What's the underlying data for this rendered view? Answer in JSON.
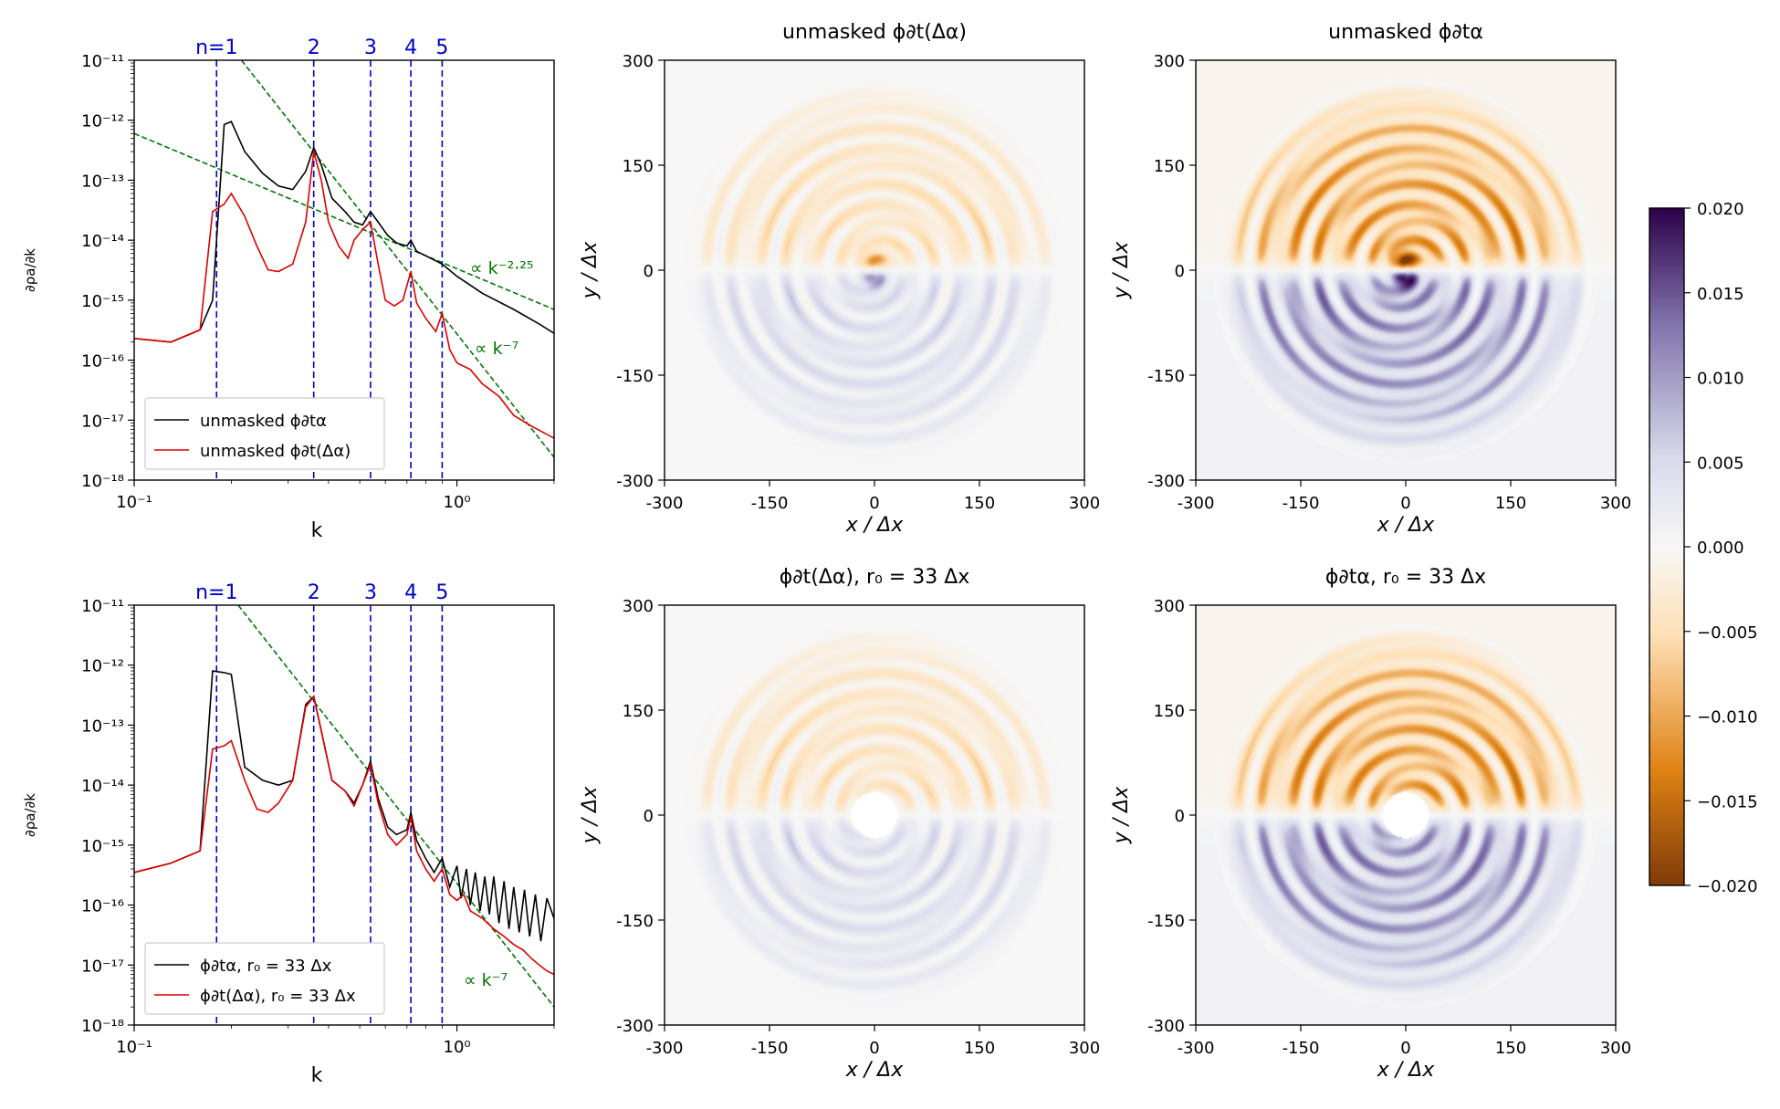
{
  "figure": {
    "colorbar": {
      "min": -0.02,
      "max": 0.02,
      "ticks": [
        "0.020",
        "0.015",
        "0.010",
        "0.005",
        "0.000",
        "−0.005",
        "−0.010",
        "−0.015",
        "−0.020"
      ],
      "tick_values": [
        0.02,
        0.015,
        0.01,
        0.005,
        0,
        -0.005,
        -0.01,
        -0.015,
        -0.02
      ],
      "colors": [
        "#7f3b08",
        "#e08214",
        "#fee0b6",
        "#f7f7f7",
        "#d8daeb",
        "#8073ac",
        "#2d004b"
      ]
    }
  },
  "chart_data": [
    {
      "type": "line",
      "id": "spectrum-top",
      "xscale": "log",
      "yscale": "log",
      "xlim": [
        0.1,
        2.0
      ],
      "ylim": [
        1e-18,
        1e-11
      ],
      "xlabel": "k",
      "ylabel": "∂ρa/∂k",
      "xtick_labels": [
        "10⁻¹",
        "10⁰"
      ],
      "ytick_labels": [
        "10⁻¹¹",
        "10⁻¹²",
        "10⁻¹³",
        "10⁻¹⁴",
        "10⁻¹⁵",
        "10⁻¹⁶",
        "10⁻¹⁷",
        "10⁻¹⁸"
      ],
      "vlines": {
        "x": [
          0.18,
          0.36,
          0.54,
          0.72,
          0.9
        ],
        "labels": [
          "n=1",
          "2",
          "3",
          "4",
          "5"
        ],
        "color": "#0000cc"
      },
      "fits": [
        {
          "label": "∝ k⁻²·²⁵",
          "points": [
            [
              0.1,
              6e-13
            ],
            [
              2.0,
              7e-16
            ]
          ],
          "color": "#007700"
        },
        {
          "label": "∝ k⁻⁷",
          "points": [
            [
              0.215,
              1e-11
            ],
            [
              2.0,
              2.4e-18
            ]
          ],
          "color": "#007700"
        }
      ],
      "series": [
        {
          "name": "unmasked ϕ∂tα",
          "color": "#000000",
          "x": [
            0.1,
            0.13,
            0.16,
            0.175,
            0.19,
            0.2,
            0.22,
            0.25,
            0.28,
            0.31,
            0.34,
            0.36,
            0.38,
            0.41,
            0.45,
            0.48,
            0.51,
            0.54,
            0.57,
            0.61,
            0.65,
            0.7,
            0.72,
            0.75,
            0.8,
            0.9,
            1.0,
            1.2,
            1.5,
            1.8,
            2.0
          ],
          "y": [
            2.3e-16,
            2e-16,
            3.2e-16,
            1e-15,
            8.5e-13,
            9.5e-13,
            3e-13,
            1.3e-13,
            8e-14,
            7e-14,
            1.4e-13,
            3.5e-13,
            1.8e-13,
            5e-14,
            3e-14,
            2e-14,
            1.8e-14,
            3e-14,
            2e-14,
            1.2e-14,
            9e-15,
            8e-15,
            1e-14,
            6.5e-15,
            5.5e-15,
            4e-15,
            2.5e-15,
            1.3e-15,
            7e-16,
            4e-16,
            2.8e-16
          ]
        },
        {
          "name": "unmasked ϕ∂t(Δα)",
          "color": "#dd0000",
          "x": [
            0.1,
            0.13,
            0.16,
            0.175,
            0.19,
            0.2,
            0.22,
            0.24,
            0.26,
            0.28,
            0.31,
            0.34,
            0.36,
            0.38,
            0.4,
            0.43,
            0.46,
            0.48,
            0.51,
            0.54,
            0.57,
            0.6,
            0.64,
            0.68,
            0.72,
            0.75,
            0.8,
            0.86,
            0.9,
            0.95,
            1.0,
            1.1,
            1.2,
            1.35,
            1.5,
            1.7,
            2.0
          ],
          "y": [
            2.3e-16,
            2e-16,
            3.2e-16,
            3e-14,
            4e-14,
            6e-14,
            2.5e-14,
            8e-15,
            3.2e-15,
            3e-15,
            4e-15,
            2e-14,
            3e-13,
            1e-13,
            2e-14,
            8e-15,
            5e-15,
            1e-14,
            1.5e-14,
            2e-14,
            4e-15,
            1e-15,
            8e-16,
            1e-15,
            3e-15,
            9e-16,
            5e-16,
            3e-16,
            6e-16,
            1.5e-16,
            9e-17,
            7e-17,
            4e-17,
            2.5e-17,
            1.2e-17,
            8e-18,
            5e-18
          ]
        }
      ],
      "legend": {
        "loc": "lower-left",
        "entries": [
          "unmasked ϕ∂tα",
          "unmasked ϕ∂t(Δα)"
        ]
      }
    },
    {
      "type": "line",
      "id": "spectrum-bottom",
      "xscale": "log",
      "yscale": "log",
      "xlim": [
        0.1,
        2.0
      ],
      "ylim": [
        1e-18,
        1e-11
      ],
      "xlabel": "k",
      "ylabel": "∂ρa/∂k",
      "xtick_labels": [
        "10⁻¹",
        "10⁰"
      ],
      "ytick_labels": [
        "10⁻¹¹",
        "10⁻¹²",
        "10⁻¹³",
        "10⁻¹⁴",
        "10⁻¹⁵",
        "10⁻¹⁶",
        "10⁻¹⁷",
        "10⁻¹⁸"
      ],
      "vlines": {
        "x": [
          0.18,
          0.36,
          0.54,
          0.72,
          0.9
        ],
        "labels": [
          "n=1",
          "2",
          "3",
          "4",
          "5"
        ],
        "color": "#0000cc"
      },
      "fits": [
        {
          "label": "∝ k⁻⁷",
          "points": [
            [
              0.21,
              1e-11
            ],
            [
              2.0,
              2e-18
            ]
          ],
          "color": "#007700"
        }
      ],
      "series": [
        {
          "name": "ϕ∂tα, r₀ = 33 Δx",
          "color": "#000000",
          "x": [
            0.1,
            0.13,
            0.16,
            0.175,
            0.19,
            0.2,
            0.22,
            0.25,
            0.28,
            0.31,
            0.34,
            0.36,
            0.38,
            0.41,
            0.45,
            0.48,
            0.51,
            0.54,
            0.57,
            0.61,
            0.65,
            0.7,
            0.72,
            0.75,
            0.8,
            0.85,
            0.9,
            0.95,
            1.0,
            1.03,
            1.07,
            1.1,
            1.14,
            1.18,
            1.22,
            1.26,
            1.3,
            1.35,
            1.4,
            1.45,
            1.5,
            1.56,
            1.62,
            1.68,
            1.75,
            1.82,
            1.9,
            2.0
          ],
          "y": [
            3.5e-16,
            5e-16,
            8e-16,
            8e-13,
            7.5e-13,
            7e-13,
            2e-14,
            1.2e-14,
            1e-14,
            1.2e-14,
            2.2e-13,
            3e-13,
            8e-14,
            1.2e-14,
            8e-15,
            5e-15,
            1e-14,
            2.5e-14,
            6e-15,
            2e-15,
            1.5e-15,
            1.8e-15,
            3.5e-15,
            1.2e-15,
            6e-16,
            3.5e-16,
            6e-16,
            2e-16,
            4.5e-16,
            1.3e-16,
            4e-16,
            1e-16,
            3.5e-16,
            8e-17,
            3e-16,
            7e-17,
            3e-16,
            5e-17,
            2.5e-16,
            4e-17,
            2e-16,
            3.5e-17,
            1.8e-16,
            3e-17,
            1.5e-16,
            2.5e-17,
            1.3e-16,
            6e-17
          ]
        },
        {
          "name": "ϕ∂t(Δα), r₀ = 33 Δx",
          "color": "#dd0000",
          "x": [
            0.1,
            0.13,
            0.16,
            0.175,
            0.19,
            0.2,
            0.22,
            0.24,
            0.26,
            0.28,
            0.31,
            0.34,
            0.36,
            0.38,
            0.41,
            0.45,
            0.48,
            0.51,
            0.54,
            0.57,
            0.61,
            0.65,
            0.7,
            0.72,
            0.75,
            0.8,
            0.85,
            0.9,
            0.95,
            1.0,
            1.05,
            1.1,
            1.2,
            1.3,
            1.4,
            1.5,
            1.6,
            1.7,
            1.8,
            1.9,
            2.0
          ],
          "y": [
            3.5e-16,
            5e-16,
            8e-16,
            4e-14,
            4.5e-14,
            5.5e-14,
            1.2e-14,
            4e-15,
            3.5e-15,
            5e-15,
            1.2e-14,
            2e-13,
            3e-13,
            8e-14,
            1.2e-14,
            8e-15,
            4.5e-15,
            1e-14,
            2.2e-14,
            5e-15,
            1.5e-15,
            1e-15,
            1.5e-15,
            3e-15,
            8e-16,
            4e-16,
            2.5e-16,
            4e-16,
            1.5e-16,
            1.2e-16,
            1.5e-16,
            8e-17,
            6e-17,
            4e-17,
            3e-17,
            2.2e-17,
            1.8e-17,
            1.3e-17,
            1e-17,
            8e-18,
            7e-18
          ]
        }
      ],
      "legend": {
        "loc": "lower-left",
        "entries": [
          "ϕ∂tα, r₀ = 33 Δx",
          "ϕ∂t(Δα), r₀ = 33 Δx"
        ]
      }
    },
    {
      "type": "heatmap",
      "id": "map-unmasked-delta",
      "title": "unmasked ϕ∂t(Δα)",
      "xlabel": "x / Δx",
      "ylabel": "y / Δx",
      "xlim": [
        -300,
        300
      ],
      "ylim": [
        -300,
        300
      ],
      "xticks": [
        "-300",
        "-150",
        "0",
        "150",
        "300"
      ],
      "yticks": [
        "300",
        "150",
        "0",
        "-150",
        "-300"
      ],
      "mask_radius": 0,
      "amplitude": 0.35,
      "bias": 0.0,
      "center_amplitude": 1.0
    },
    {
      "type": "heatmap",
      "id": "map-unmasked-alpha",
      "title": "unmasked ϕ∂tα",
      "xlabel": "x / Δx",
      "ylabel": "y / Δx",
      "xlim": [
        -300,
        300
      ],
      "ylim": [
        -300,
        300
      ],
      "xticks": [
        "-300",
        "-150",
        "0",
        "150",
        "300"
      ],
      "yticks": [
        "300",
        "150",
        "0",
        "-150",
        "-300"
      ],
      "mask_radius": 0,
      "amplitude": 0.55,
      "bias": 0.35,
      "center_amplitude": 1.6
    },
    {
      "type": "heatmap",
      "id": "map-masked-delta",
      "title": "ϕ∂t(Δα), r₀ = 33 Δx",
      "xlabel": "x / Δx",
      "ylabel": "y / Δx",
      "xlim": [
        -300,
        300
      ],
      "ylim": [
        -300,
        300
      ],
      "xticks": [
        "-300",
        "-150",
        "0",
        "150",
        "300"
      ],
      "yticks": [
        "300",
        "150",
        "0",
        "-150",
        "-300"
      ],
      "mask_radius": 33,
      "amplitude": 0.35,
      "bias": 0.0,
      "center_amplitude": 0
    },
    {
      "type": "heatmap",
      "id": "map-masked-alpha",
      "title": "ϕ∂tα, r₀ = 33 Δx",
      "xlabel": "x / Δx",
      "ylabel": "y / Δx",
      "xlim": [
        -300,
        300
      ],
      "ylim": [
        -300,
        300
      ],
      "xticks": [
        "-300",
        "-150",
        "0",
        "150",
        "300"
      ],
      "yticks": [
        "300",
        "150",
        "0",
        "-150",
        "-300"
      ],
      "mask_radius": 33,
      "amplitude": 0.55,
      "bias": 0.35,
      "center_amplitude": 0
    }
  ]
}
